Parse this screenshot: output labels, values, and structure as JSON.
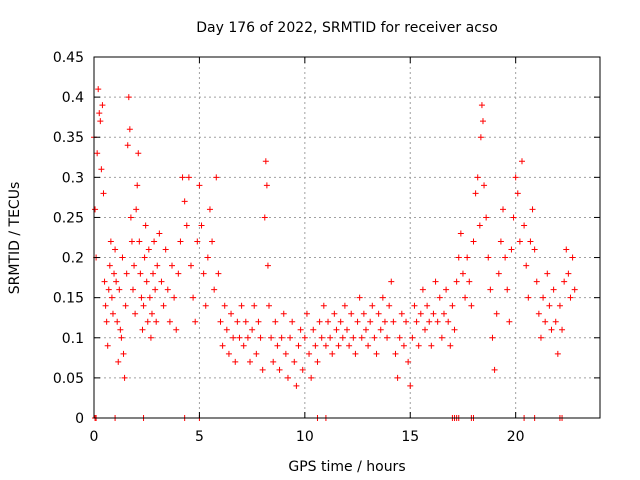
{
  "chart_data": {
    "type": "scatter",
    "title": "Day 176 of 2022, SRMTID for receiver acso",
    "xlabel": "GPS time / hours",
    "ylabel": "SRMTID / TECUs",
    "xlim": [
      0,
      24
    ],
    "ylim": [
      0,
      0.45
    ],
    "x_ticks": [
      0,
      5,
      10,
      15,
      20
    ],
    "x_tick_labels": [
      "0",
      "5",
      "10",
      "15",
      "20"
    ],
    "y_ticks": [
      0,
      0.05,
      0.1,
      0.15,
      0.2,
      0.25,
      0.3,
      0.35,
      0.4,
      0.45
    ],
    "y_tick_labels": [
      "0",
      "0.05",
      "0.1",
      "0.15",
      "0.2",
      "0.25",
      "0.3",
      "0.35",
      "0.4",
      "0.45"
    ],
    "grid": true,
    "marker": "plus",
    "color": "#ff0000",
    "series": [
      {
        "name": "SRMTID",
        "points": [
          [
            0.0,
            0.35
          ],
          [
            0.05,
            0.26
          ],
          [
            0.1,
            0.2
          ],
          [
            0.15,
            0.33
          ],
          [
            0.2,
            0.41
          ],
          [
            0.25,
            0.38
          ],
          [
            0.3,
            0.37
          ],
          [
            0.35,
            0.31
          ],
          [
            0.4,
            0.39
          ],
          [
            0.45,
            0.28
          ],
          [
            0.5,
            0.17
          ],
          [
            0.55,
            0.14
          ],
          [
            0.6,
            0.12
          ],
          [
            0.65,
            0.09
          ],
          [
            0.7,
            0.16
          ],
          [
            0.75,
            0.19
          ],
          [
            0.8,
            0.22
          ],
          [
            0.85,
            0.15
          ],
          [
            0.9,
            0.13
          ],
          [
            0.95,
            0.18
          ],
          [
            1.0,
            0.21
          ],
          [
            1.05,
            0.17
          ],
          [
            1.1,
            0.12
          ],
          [
            1.15,
            0.07
          ],
          [
            1.2,
            0.16
          ],
          [
            1.25,
            0.11
          ],
          [
            1.3,
            0.1
          ],
          [
            1.35,
            0.2
          ],
          [
            1.4,
            0.08
          ],
          [
            1.45,
            0.05
          ],
          [
            1.5,
            0.14
          ],
          [
            1.55,
            0.18
          ],
          [
            1.6,
            0.34
          ],
          [
            1.65,
            0.4
          ],
          [
            1.7,
            0.36
          ],
          [
            1.75,
            0.25
          ],
          [
            1.8,
            0.22
          ],
          [
            1.85,
            0.16
          ],
          [
            1.9,
            0.19
          ],
          [
            1.95,
            0.13
          ],
          [
            2.0,
            0.26
          ],
          [
            2.05,
            0.29
          ],
          [
            2.1,
            0.33
          ],
          [
            2.15,
            0.22
          ],
          [
            2.2,
            0.18
          ],
          [
            2.25,
            0.15
          ],
          [
            2.3,
            0.11
          ],
          [
            2.35,
            0.14
          ],
          [
            2.4,
            0.2
          ],
          [
            2.45,
            0.24
          ],
          [
            2.5,
            0.17
          ],
          [
            2.55,
            0.12
          ],
          [
            2.6,
            0.21
          ],
          [
            2.65,
            0.15
          ],
          [
            2.7,
            0.1
          ],
          [
            2.75,
            0.13
          ],
          [
            2.8,
            0.18
          ],
          [
            2.85,
            0.22
          ],
          [
            2.9,
            0.16
          ],
          [
            2.95,
            0.12
          ],
          [
            3.0,
            0.19
          ],
          [
            3.1,
            0.23
          ],
          [
            3.2,
            0.17
          ],
          [
            3.3,
            0.14
          ],
          [
            3.4,
            0.21
          ],
          [
            3.5,
            0.16
          ],
          [
            3.6,
            0.12
          ],
          [
            3.7,
            0.19
          ],
          [
            3.8,
            0.15
          ],
          [
            3.9,
            0.11
          ],
          [
            4.0,
            0.18
          ],
          [
            4.1,
            0.22
          ],
          [
            4.2,
            0.3
          ],
          [
            4.3,
            0.27
          ],
          [
            4.4,
            0.24
          ],
          [
            4.5,
            0.3
          ],
          [
            4.6,
            0.19
          ],
          [
            4.7,
            0.15
          ],
          [
            4.8,
            0.12
          ],
          [
            4.9,
            0.22
          ],
          [
            5.0,
            0.29
          ],
          [
            5.1,
            0.24
          ],
          [
            5.2,
            0.18
          ],
          [
            5.3,
            0.14
          ],
          [
            5.4,
            0.2
          ],
          [
            5.5,
            0.26
          ],
          [
            5.6,
            0.22
          ],
          [
            5.7,
            0.16
          ],
          [
            5.8,
            0.3
          ],
          [
            5.9,
            0.18
          ],
          [
            6.0,
            0.12
          ],
          [
            6.1,
            0.09
          ],
          [
            6.2,
            0.14
          ],
          [
            6.3,
            0.11
          ],
          [
            6.4,
            0.08
          ],
          [
            6.5,
            0.13
          ],
          [
            6.6,
            0.1
          ],
          [
            6.7,
            0.07
          ],
          [
            6.8,
            0.12
          ],
          [
            6.9,
            0.1
          ],
          [
            7.0,
            0.14
          ],
          [
            7.1,
            0.09
          ],
          [
            7.2,
            0.12
          ],
          [
            7.3,
            0.1
          ],
          [
            7.4,
            0.07
          ],
          [
            7.5,
            0.11
          ],
          [
            7.6,
            0.14
          ],
          [
            7.7,
            0.08
          ],
          [
            7.8,
            0.12
          ],
          [
            7.9,
            0.1
          ],
          [
            8.0,
            0.06
          ],
          [
            8.1,
            0.25
          ],
          [
            8.15,
            0.32
          ],
          [
            8.2,
            0.29
          ],
          [
            8.25,
            0.19
          ],
          [
            8.3,
            0.14
          ],
          [
            8.4,
            0.1
          ],
          [
            8.5,
            0.07
          ],
          [
            8.6,
            0.12
          ],
          [
            8.7,
            0.09
          ],
          [
            8.8,
            0.06
          ],
          [
            8.9,
            0.1
          ],
          [
            9.0,
            0.13
          ],
          [
            9.1,
            0.08
          ],
          [
            9.2,
            0.05
          ],
          [
            9.3,
            0.1
          ],
          [
            9.4,
            0.12
          ],
          [
            9.5,
            0.07
          ],
          [
            9.6,
            0.04
          ],
          [
            9.7,
            0.09
          ],
          [
            9.8,
            0.11
          ],
          [
            9.9,
            0.06
          ],
          [
            10.0,
            0.1
          ],
          [
            10.1,
            0.13
          ],
          [
            10.2,
            0.08
          ],
          [
            10.3,
            0.05
          ],
          [
            10.4,
            0.11
          ],
          [
            10.5,
            0.09
          ],
          [
            10.6,
            0.07
          ],
          [
            10.7,
            0.12
          ],
          [
            10.8,
            0.1
          ],
          [
            10.9,
            0.14
          ],
          [
            11.0,
            0.09
          ],
          [
            11.1,
            0.12
          ],
          [
            11.2,
            0.1
          ],
          [
            11.3,
            0.08
          ],
          [
            11.4,
            0.13
          ],
          [
            11.5,
            0.11
          ],
          [
            11.6,
            0.09
          ],
          [
            11.7,
            0.12
          ],
          [
            11.8,
            0.1
          ],
          [
            11.9,
            0.14
          ],
          [
            12.0,
            0.11
          ],
          [
            12.1,
            0.09
          ],
          [
            12.2,
            0.13
          ],
          [
            12.3,
            0.1
          ],
          [
            12.4,
            0.08
          ],
          [
            12.5,
            0.12
          ],
          [
            12.6,
            0.15
          ],
          [
            12.7,
            0.1
          ],
          [
            12.8,
            0.13
          ],
          [
            12.9,
            0.11
          ],
          [
            13.0,
            0.09
          ],
          [
            13.1,
            0.12
          ],
          [
            13.2,
            0.14
          ],
          [
            13.3,
            0.1
          ],
          [
            13.4,
            0.08
          ],
          [
            13.5,
            0.13
          ],
          [
            13.6,
            0.11
          ],
          [
            13.7,
            0.15
          ],
          [
            13.8,
            0.12
          ],
          [
            13.9,
            0.1
          ],
          [
            14.0,
            0.14
          ],
          [
            14.1,
            0.17
          ],
          [
            14.2,
            0.12
          ],
          [
            14.3,
            0.08
          ],
          [
            14.4,
            0.05
          ],
          [
            14.5,
            0.1
          ],
          [
            14.6,
            0.13
          ],
          [
            14.7,
            0.09
          ],
          [
            14.8,
            0.12
          ],
          [
            14.9,
            0.07
          ],
          [
            15.0,
            0.04
          ],
          [
            15.1,
            0.1
          ],
          [
            15.2,
            0.14
          ],
          [
            15.3,
            0.12
          ],
          [
            15.4,
            0.09
          ],
          [
            15.5,
            0.13
          ],
          [
            15.6,
            0.16
          ],
          [
            15.7,
            0.11
          ],
          [
            15.8,
            0.14
          ],
          [
            15.9,
            0.12
          ],
          [
            16.0,
            0.09
          ],
          [
            16.1,
            0.13
          ],
          [
            16.2,
            0.17
          ],
          [
            16.3,
            0.12
          ],
          [
            16.4,
            0.15
          ],
          [
            16.5,
            0.1
          ],
          [
            16.6,
            0.13
          ],
          [
            16.7,
            0.16
          ],
          [
            16.8,
            0.12
          ],
          [
            16.9,
            0.09
          ],
          [
            17.0,
            0.14
          ],
          [
            17.1,
            0.11
          ],
          [
            17.2,
            0.17
          ],
          [
            17.3,
            0.2
          ],
          [
            17.4,
            0.23
          ],
          [
            17.5,
            0.18
          ],
          [
            17.6,
            0.15
          ],
          [
            17.7,
            0.2
          ],
          [
            17.8,
            0.17
          ],
          [
            17.9,
            0.14
          ],
          [
            18.0,
            0.22
          ],
          [
            18.1,
            0.28
          ],
          [
            18.2,
            0.3
          ],
          [
            18.3,
            0.24
          ],
          [
            18.35,
            0.35
          ],
          [
            18.4,
            0.39
          ],
          [
            18.45,
            0.37
          ],
          [
            18.5,
            0.29
          ],
          [
            18.6,
            0.25
          ],
          [
            18.7,
            0.2
          ],
          [
            18.8,
            0.16
          ],
          [
            18.9,
            0.1
          ],
          [
            19.0,
            0.06
          ],
          [
            19.1,
            0.13
          ],
          [
            19.2,
            0.18
          ],
          [
            19.3,
            0.22
          ],
          [
            19.4,
            0.26
          ],
          [
            19.5,
            0.2
          ],
          [
            19.6,
            0.16
          ],
          [
            19.7,
            0.12
          ],
          [
            19.8,
            0.21
          ],
          [
            19.9,
            0.25
          ],
          [
            20.0,
            0.3
          ],
          [
            20.1,
            0.28
          ],
          [
            20.2,
            0.22
          ],
          [
            20.3,
            0.32
          ],
          [
            20.4,
            0.24
          ],
          [
            20.5,
            0.19
          ],
          [
            20.6,
            0.15
          ],
          [
            20.7,
            0.22
          ],
          [
            20.8,
            0.26
          ],
          [
            20.9,
            0.21
          ],
          [
            21.0,
            0.17
          ],
          [
            21.1,
            0.13
          ],
          [
            21.2,
            0.1
          ],
          [
            21.3,
            0.15
          ],
          [
            21.4,
            0.12
          ],
          [
            21.5,
            0.18
          ],
          [
            21.6,
            0.14
          ],
          [
            21.7,
            0.11
          ],
          [
            21.8,
            0.16
          ],
          [
            21.9,
            0.12
          ],
          [
            22.0,
            0.08
          ],
          [
            22.1,
            0.14
          ],
          [
            22.2,
            0.11
          ],
          [
            22.3,
            0.17
          ],
          [
            22.4,
            0.21
          ],
          [
            22.5,
            0.18
          ],
          [
            22.6,
            0.15
          ],
          [
            22.7,
            0.2
          ],
          [
            22.8,
            0.16
          ],
          [
            0.05,
            0.0
          ],
          [
            0.1,
            0.0
          ],
          [
            1.0,
            0.0
          ],
          [
            2.35,
            0.0
          ],
          [
            4.3,
            0.0
          ],
          [
            5.0,
            0.0
          ],
          [
            10.6,
            0.0
          ],
          [
            11.0,
            0.0
          ],
          [
            17.0,
            0.0
          ],
          [
            17.1,
            0.0
          ],
          [
            17.2,
            0.0
          ],
          [
            17.3,
            0.0
          ],
          [
            17.9,
            0.0
          ],
          [
            18.0,
            0.0
          ],
          [
            20.4,
            0.0
          ],
          [
            20.9,
            0.0
          ],
          [
            22.1,
            0.0
          ],
          [
            22.2,
            0.0
          ]
        ]
      }
    ]
  }
}
